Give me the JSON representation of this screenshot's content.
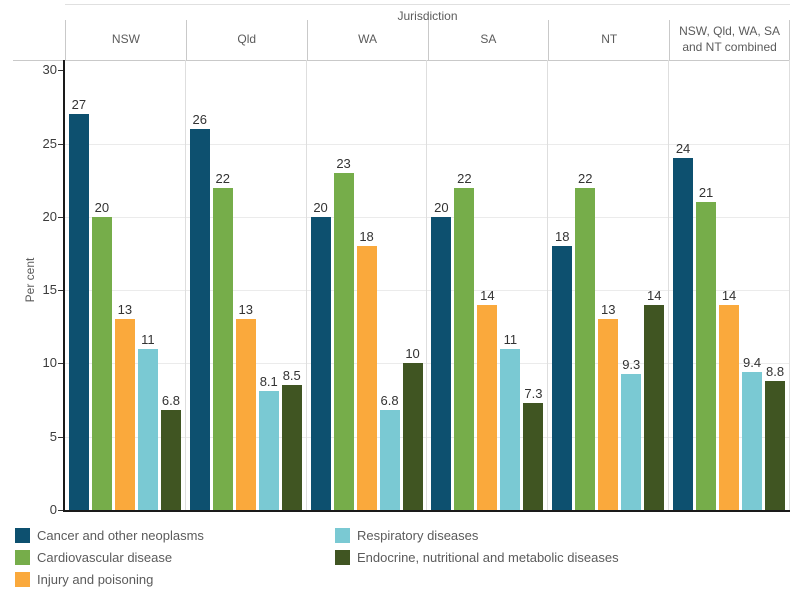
{
  "axis_field_label": "Jurisdiction",
  "y_axis_title": "Per cent",
  "chart_data": {
    "type": "bar",
    "group_label": "Jurisdiction",
    "categories": [
      "NSW",
      "Qld",
      "WA",
      "SA",
      "NT",
      "NSW, Qld, WA, SA and NT combined"
    ],
    "series": [
      {
        "name": "Cancer and other neoplasms",
        "color": "#0d506f",
        "values": [
          27,
          26,
          20,
          20,
          18,
          24
        ]
      },
      {
        "name": "Cardiovascular disease",
        "color": "#76ad4a",
        "values": [
          20,
          22,
          23,
          22,
          22,
          21
        ]
      },
      {
        "name": "Injury and poisoning",
        "color": "#faa93c",
        "values": [
          13,
          13,
          18,
          14,
          13,
          14
        ]
      },
      {
        "name": "Respiratory diseases",
        "color": "#7ac9d3",
        "values": [
          11,
          8.1,
          6.8,
          11,
          9.3,
          9.4
        ]
      },
      {
        "name": "Endocrine, nutritional and metabolic diseases",
        "color": "#405522",
        "values": [
          6.8,
          8.5,
          10,
          7.3,
          14,
          8.8
        ]
      }
    ],
    "ylabel": "Per cent",
    "xlabel": "",
    "yticks": [
      0,
      5,
      10,
      15,
      20,
      25,
      30
    ],
    "ylim": [
      0,
      30.7
    ],
    "grid": "horizontal",
    "bar_value_labels_shown": true,
    "legend_position": "bottom"
  },
  "legend": {
    "columns": [
      [
        "Cancer and other neoplasms",
        "Cardiovascular disease",
        "Injury and poisoning"
      ],
      [
        "Respiratory diseases",
        "Endocrine, nutritional and metabolic diseases"
      ]
    ]
  },
  "colors": {
    "axis_line": "#1a1a1a",
    "gridline": "#ebebeb",
    "panel_divider": "#dedede",
    "header_border": "#c9c9c9",
    "text_muted": "#5b5b5b",
    "text_value": "#333333"
  }
}
